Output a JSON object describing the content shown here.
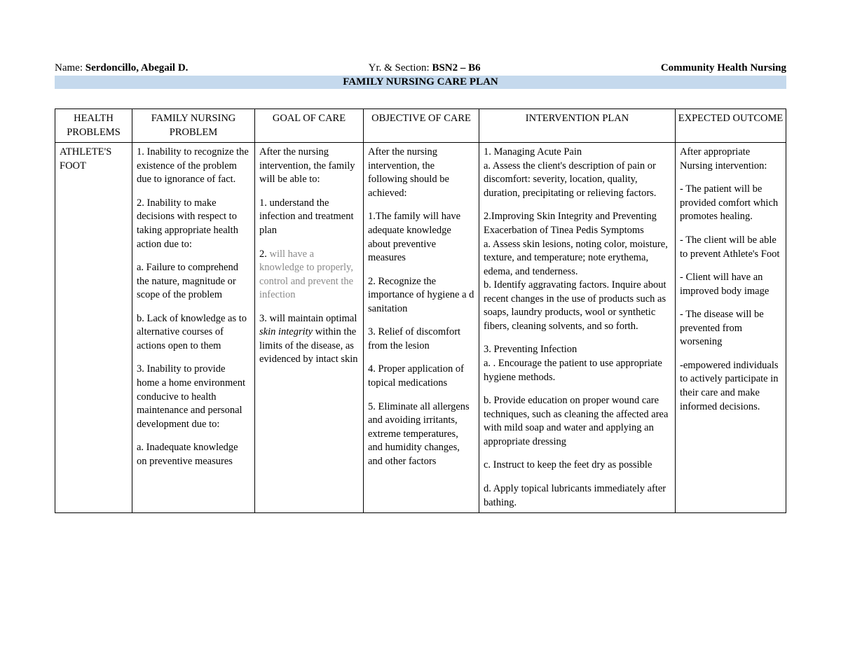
{
  "header": {
    "name_label": "Name: ",
    "name_value": "Serdoncillo, Abegail D.",
    "section_label": "Yr. & Section: ",
    "section_value": "BSN2 – B6",
    "course": "Community Health Nursing",
    "title": "FAMILY NURSING CARE PLAN"
  },
  "columns": {
    "c1": "HEALTH PROBLEMS",
    "c2": "FAMILY NURSING PROBLEM",
    "c3": "GOAL OF CARE",
    "c4": "OBJECTIVE OF CARE",
    "c5": "INTERVENTION PLAN",
    "c6": "EXPECTED OUTCOME"
  },
  "row": {
    "health_problem": "ATHLETE'S FOOT",
    "family_problem": {
      "p1": "1. Inability to recognize the existence of the problem due to ignorance of fact.",
      "p2": "2.  Inability to make decisions with respect to taking appropriate health action due to:",
      "p2a": "a. Failure to comprehend the nature, magnitude or scope of the problem",
      "p2b": "b. Lack of knowledge as to alternative courses of actions open to them",
      "p3": "3. Inability to provide home a home environment conducive to health maintenance and personal development due to:",
      "p3a": "a. Inadequate knowledge on preventive measures"
    },
    "goal": {
      "intro": "After the nursing intervention, the family will be able to:",
      "g1": "1. understand the infection and treatment plan",
      "g2a": " 2. ",
      "g2b_gray": "will have a knowledge to properly, control and prevent the infection",
      "g3a": "3.  will maintain optimal ",
      "g3b_ital": "skin integrity",
      "g3c": " within the limits of the disease, as evidenced by intact skin"
    },
    "objective": {
      "intro": "After the nursing intervention, the following should be achieved:",
      "o1": "1.The family will have adequate knowledge about preventive measures",
      "o2": "2. Recognize the importance of hygiene a d sanitation",
      "o3": "3. Relief of discomfort from the lesion",
      "o4": "4.  Proper application of topical medications",
      "o5": "5.  Eliminate all allergens and avoiding irritants, extreme temperatures, and humidity changes, and other factors"
    },
    "intervention": {
      "i1": "1.  Managing Acute Pain",
      "i1a": "a. Assess the client's description of pain or discomfort: severity, location, quality, duration, precipitating or relieving factors.",
      "i2": "2.Improving Skin Integrity and Preventing Exacerbation of Tinea Pedis Symptoms",
      "i2a": "a. Assess skin lesions, noting color, moisture, texture, and temperature; note erythema, edema, and tenderness.",
      "i2b": "b. Identify aggravating factors. Inquire about recent changes in the use of products such as soaps, laundry products, wool or synthetic fibers, cleaning solvents, and so forth.",
      "i3": "3. Preventing Infection",
      "i3a": "a. . Encourage the patient to use appropriate hygiene methods.",
      "i3b": "b. Provide education on proper wound care techniques, such as cleaning the affected area with mild soap and water and applying an appropriate dressing",
      "i3c": "c. Instruct to keep the feet dry as possible",
      "i3d": "d.  Apply topical lubricants immediately after bathing."
    },
    "outcome": {
      "intro": "After appropriate Nursing intervention:",
      "e1": "- The patient will be provided comfort which promotes healing.",
      "e2": "- The client will be able to prevent Athlete's Foot",
      "e3": "- Client will have an improved body image",
      "e4": "- The disease will be prevented from worsening",
      "e5": "-empowered individuals to actively participate in their care and make informed decisions."
    }
  }
}
